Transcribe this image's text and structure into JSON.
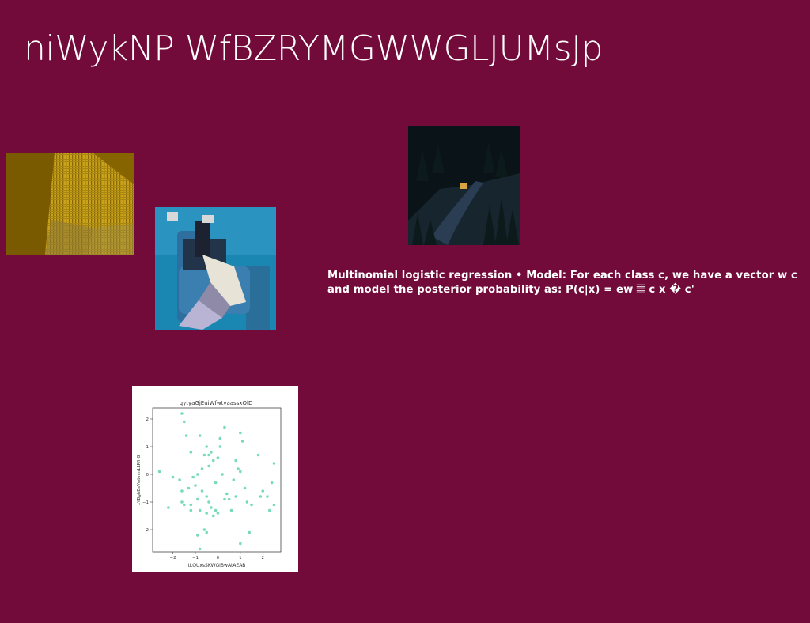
{
  "slide": {
    "title": "niWykNP WfBZRYMGWWGLJUMsJp",
    "body_text": "Multinomial logistic regression • Model: For each class c, we have a vector w c and model the posterior probability as: P(c|x) = ew 𝄚 c x � c'",
    "colors": {
      "background": "#720a3a",
      "text": "#ffffff",
      "scatter_point": "#5fd3b0"
    },
    "images": [
      {
        "name": "building-photo",
        "alt": "golden skyscraper"
      },
      {
        "name": "person-photo",
        "alt": "person lying on blue armchair"
      },
      {
        "name": "forest-photo",
        "alt": "forest at night with lit cabin"
      }
    ]
  },
  "chart_data": {
    "type": "scatter",
    "title": "qytyaGjEuiWfwtvaassxOlD",
    "xlabel": "tLQUxsSKWGIBwAtAEAB",
    "ylabel": "zYBghBsVwbnmLLPfhG",
    "xlim": [
      -2.9,
      2.8
    ],
    "ylim": [
      -2.8,
      2.4
    ],
    "xticks": [
      -2,
      -1,
      0,
      1,
      2
    ],
    "yticks": [
      -2,
      -1,
      0,
      1,
      2
    ],
    "grid": false,
    "series": [
      {
        "x": [
          -1.6,
          -1.5,
          -1.4,
          -0.8,
          -0.5,
          0.3,
          1.0,
          0.1,
          1.1,
          -1.2,
          -0.6,
          -0.4,
          -0.3,
          0.0,
          -0.2,
          1.8,
          2.5,
          -2.6,
          -2.0,
          -1.7,
          -1.1,
          -0.9,
          -0.7,
          -0.1,
          0.2,
          0.7,
          0.9,
          -1.3,
          -1.0,
          -0.5,
          0.4,
          0.8,
          1.2,
          2.0,
          2.4,
          -1.6,
          -1.2,
          -0.9,
          -0.4,
          -0.1,
          0.5,
          1.5,
          1.9,
          -2.2,
          -1.5,
          -1.2,
          -0.8,
          -0.5,
          -0.2,
          0.6,
          1.3,
          2.3,
          2.5,
          -0.6,
          -0.5,
          -0.9,
          1.0,
          1.4,
          -0.8,
          0.0,
          -0.3,
          0.3,
          -1.6,
          0.8,
          -0.4,
          0.1,
          1.0,
          -0.7,
          2.2
        ],
        "y": [
          2.2,
          1.9,
          1.4,
          1.4,
          1.0,
          1.7,
          1.5,
          1.3,
          1.2,
          0.8,
          0.7,
          0.7,
          0.8,
          0.6,
          0.5,
          0.7,
          0.4,
          0.1,
          -0.1,
          -0.2,
          -0.1,
          0.0,
          0.2,
          -0.3,
          0.0,
          -0.2,
          0.2,
          -0.5,
          -0.4,
          -0.8,
          -0.7,
          -0.8,
          -0.5,
          -0.6,
          -0.3,
          -1.0,
          -1.1,
          -0.9,
          -1.0,
          -1.3,
          -0.9,
          -1.1,
          -0.8,
          -1.2,
          -1.1,
          -1.3,
          -1.3,
          -1.4,
          -1.5,
          -1.3,
          -1.0,
          -1.3,
          -1.1,
          -2.0,
          -2.1,
          -2.2,
          -2.5,
          -2.1,
          -2.7,
          -1.4,
          -1.2,
          -0.9,
          -0.6,
          0.5,
          0.3,
          1.0,
          0.1,
          -0.6,
          -0.8
        ]
      }
    ]
  }
}
